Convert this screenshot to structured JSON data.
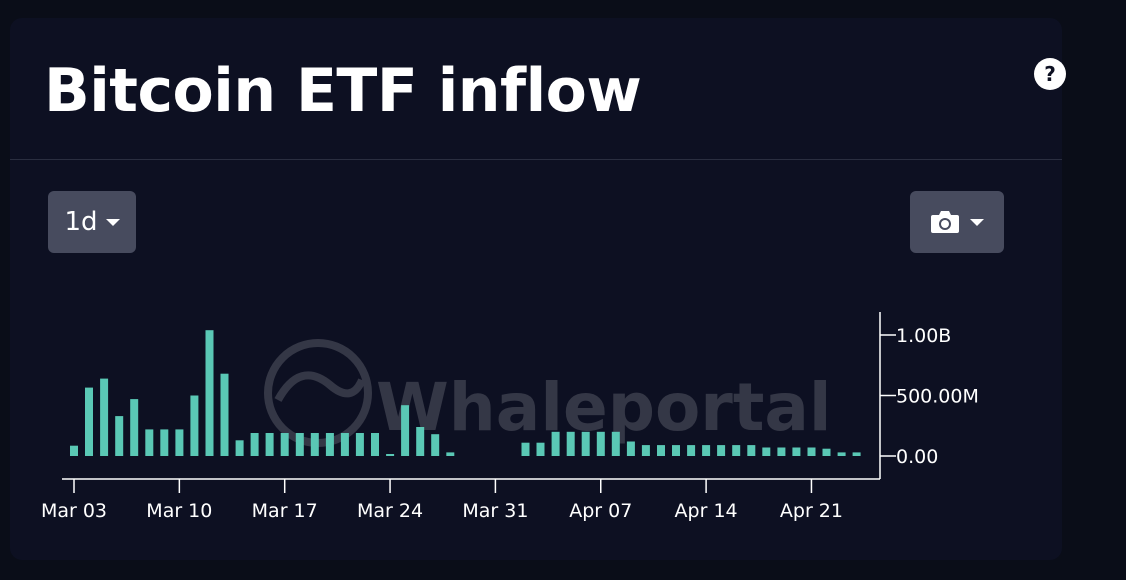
{
  "header": {
    "title": "Bitcoin ETF inflow",
    "help_icon": "question-circle-icon"
  },
  "toolbar": {
    "range_label": "1d",
    "range_caret_icon": "caret-down-icon",
    "export_icon": "camera-icon",
    "export_caret_icon": "caret-down-icon"
  },
  "watermark": {
    "text": "Whaleportal",
    "icon": "whaleportal-logo-icon"
  },
  "colors": {
    "bar": "#5ac8b5",
    "axis": "#ffffff",
    "card": "#0d1022",
    "button": "#474b5e"
  },
  "chart_data": {
    "type": "bar",
    "x_tick_labels": [
      "Mar 03",
      "Mar 10",
      "Mar 17",
      "Mar 24",
      "Mar 31",
      "Apr 07",
      "Apr 14",
      "Apr 21"
    ],
    "y_tick_labels": [
      "0.00",
      "500.00M",
      "1.00B"
    ],
    "y_ticks": [
      0,
      500000000,
      1000000000
    ],
    "ylim": [
      0,
      1150000000
    ],
    "grid": false,
    "y_axis_position": "right",
    "series": [
      {
        "x": [
          "2024-03-03",
          "2024-03-04",
          "2024-03-05",
          "2024-03-06",
          "2024-03-07",
          "2024-03-08",
          "2024-03-09",
          "2024-03-10",
          "2024-03-11",
          "2024-03-12",
          "2024-03-13",
          "2024-03-14",
          "2024-03-15",
          "2024-03-16",
          "2024-03-17",
          "2024-03-18",
          "2024-03-19",
          "2024-03-20",
          "2024-03-21",
          "2024-03-22",
          "2024-03-23",
          "2024-03-24",
          "2024-03-25",
          "2024-03-26",
          "2024-03-27",
          "2024-03-28",
          "2024-04-02",
          "2024-04-03",
          "2024-04-04",
          "2024-04-05",
          "2024-04-06",
          "2024-04-07",
          "2024-04-08",
          "2024-04-09",
          "2024-04-10",
          "2024-04-11",
          "2024-04-12",
          "2024-04-13",
          "2024-04-14",
          "2024-04-15",
          "2024-04-16",
          "2024-04-17",
          "2024-04-18",
          "2024-04-19",
          "2024-04-20",
          "2024-04-21",
          "2024-04-22",
          "2024-04-23",
          "2024-04-24"
        ],
        "values": [
          85000000,
          565000000,
          640000000,
          330000000,
          470000000,
          220000000,
          220000000,
          220000000,
          500000000,
          1040000000,
          680000000,
          130000000,
          190000000,
          190000000,
          190000000,
          190000000,
          190000000,
          190000000,
          190000000,
          190000000,
          190000000,
          10000000,
          420000000,
          240000000,
          180000000,
          30000000,
          110000000,
          110000000,
          200000000,
          200000000,
          200000000,
          200000000,
          200000000,
          120000000,
          90000000,
          90000000,
          90000000,
          90000000,
          90000000,
          90000000,
          90000000,
          90000000,
          70000000,
          70000000,
          70000000,
          70000000,
          60000000,
          30000000,
          30000000
        ]
      }
    ]
  }
}
